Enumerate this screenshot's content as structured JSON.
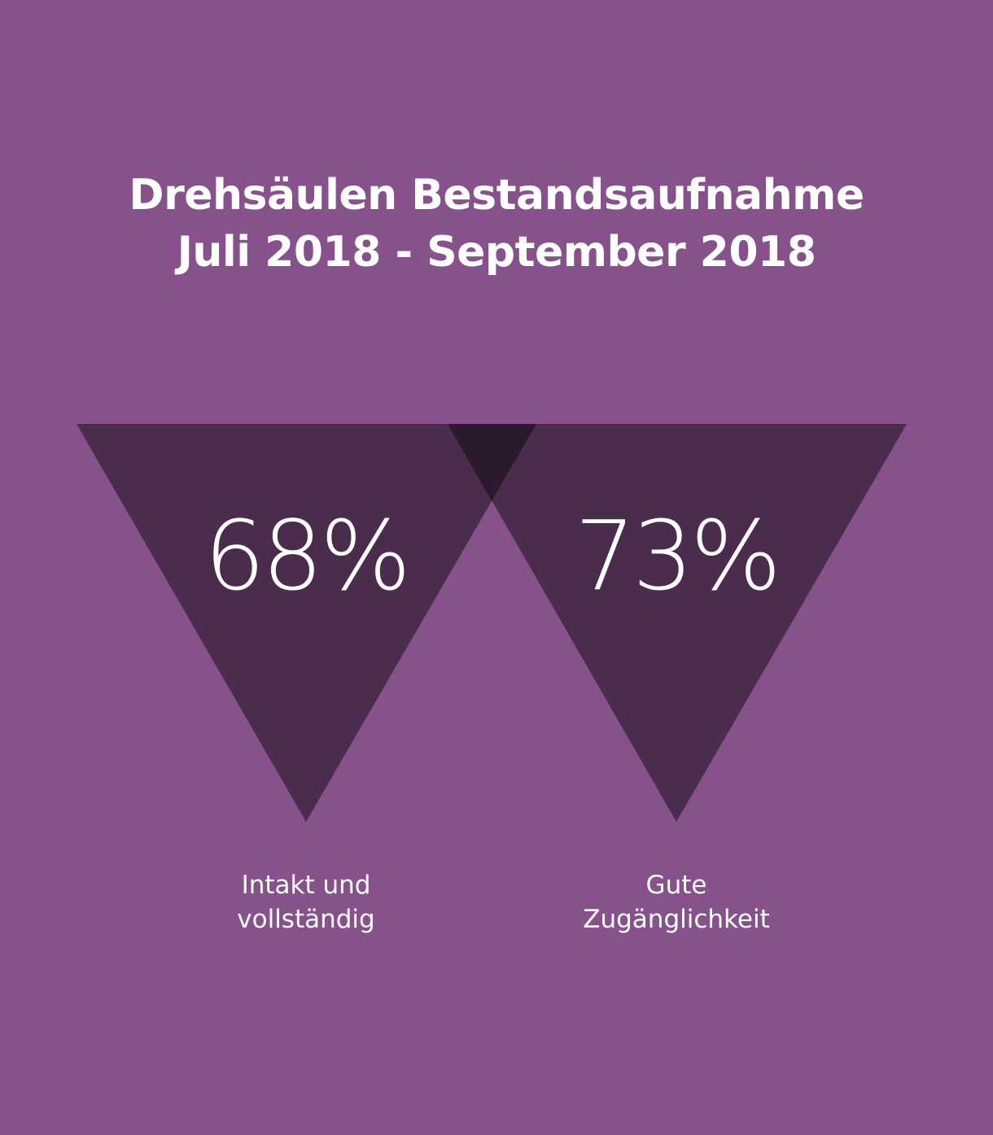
{
  "title": {
    "line1": "Drehsäulen Bestandsaufnahme",
    "line2": "Juli 2018 - September 2018"
  },
  "stats": [
    {
      "percent_value": 68,
      "percent_text": "68%",
      "label_line1": "Intakt und",
      "label_line2": "vollständig"
    },
    {
      "percent_value": 73,
      "percent_text": "73%",
      "label_line1": "Gute",
      "label_line2": "Zugänglichkeit"
    }
  ],
  "colors": {
    "background": "#87518b",
    "triangle": "#4a2c4d",
    "overlap": "#2b1a2d",
    "text": "#ffffff"
  }
}
